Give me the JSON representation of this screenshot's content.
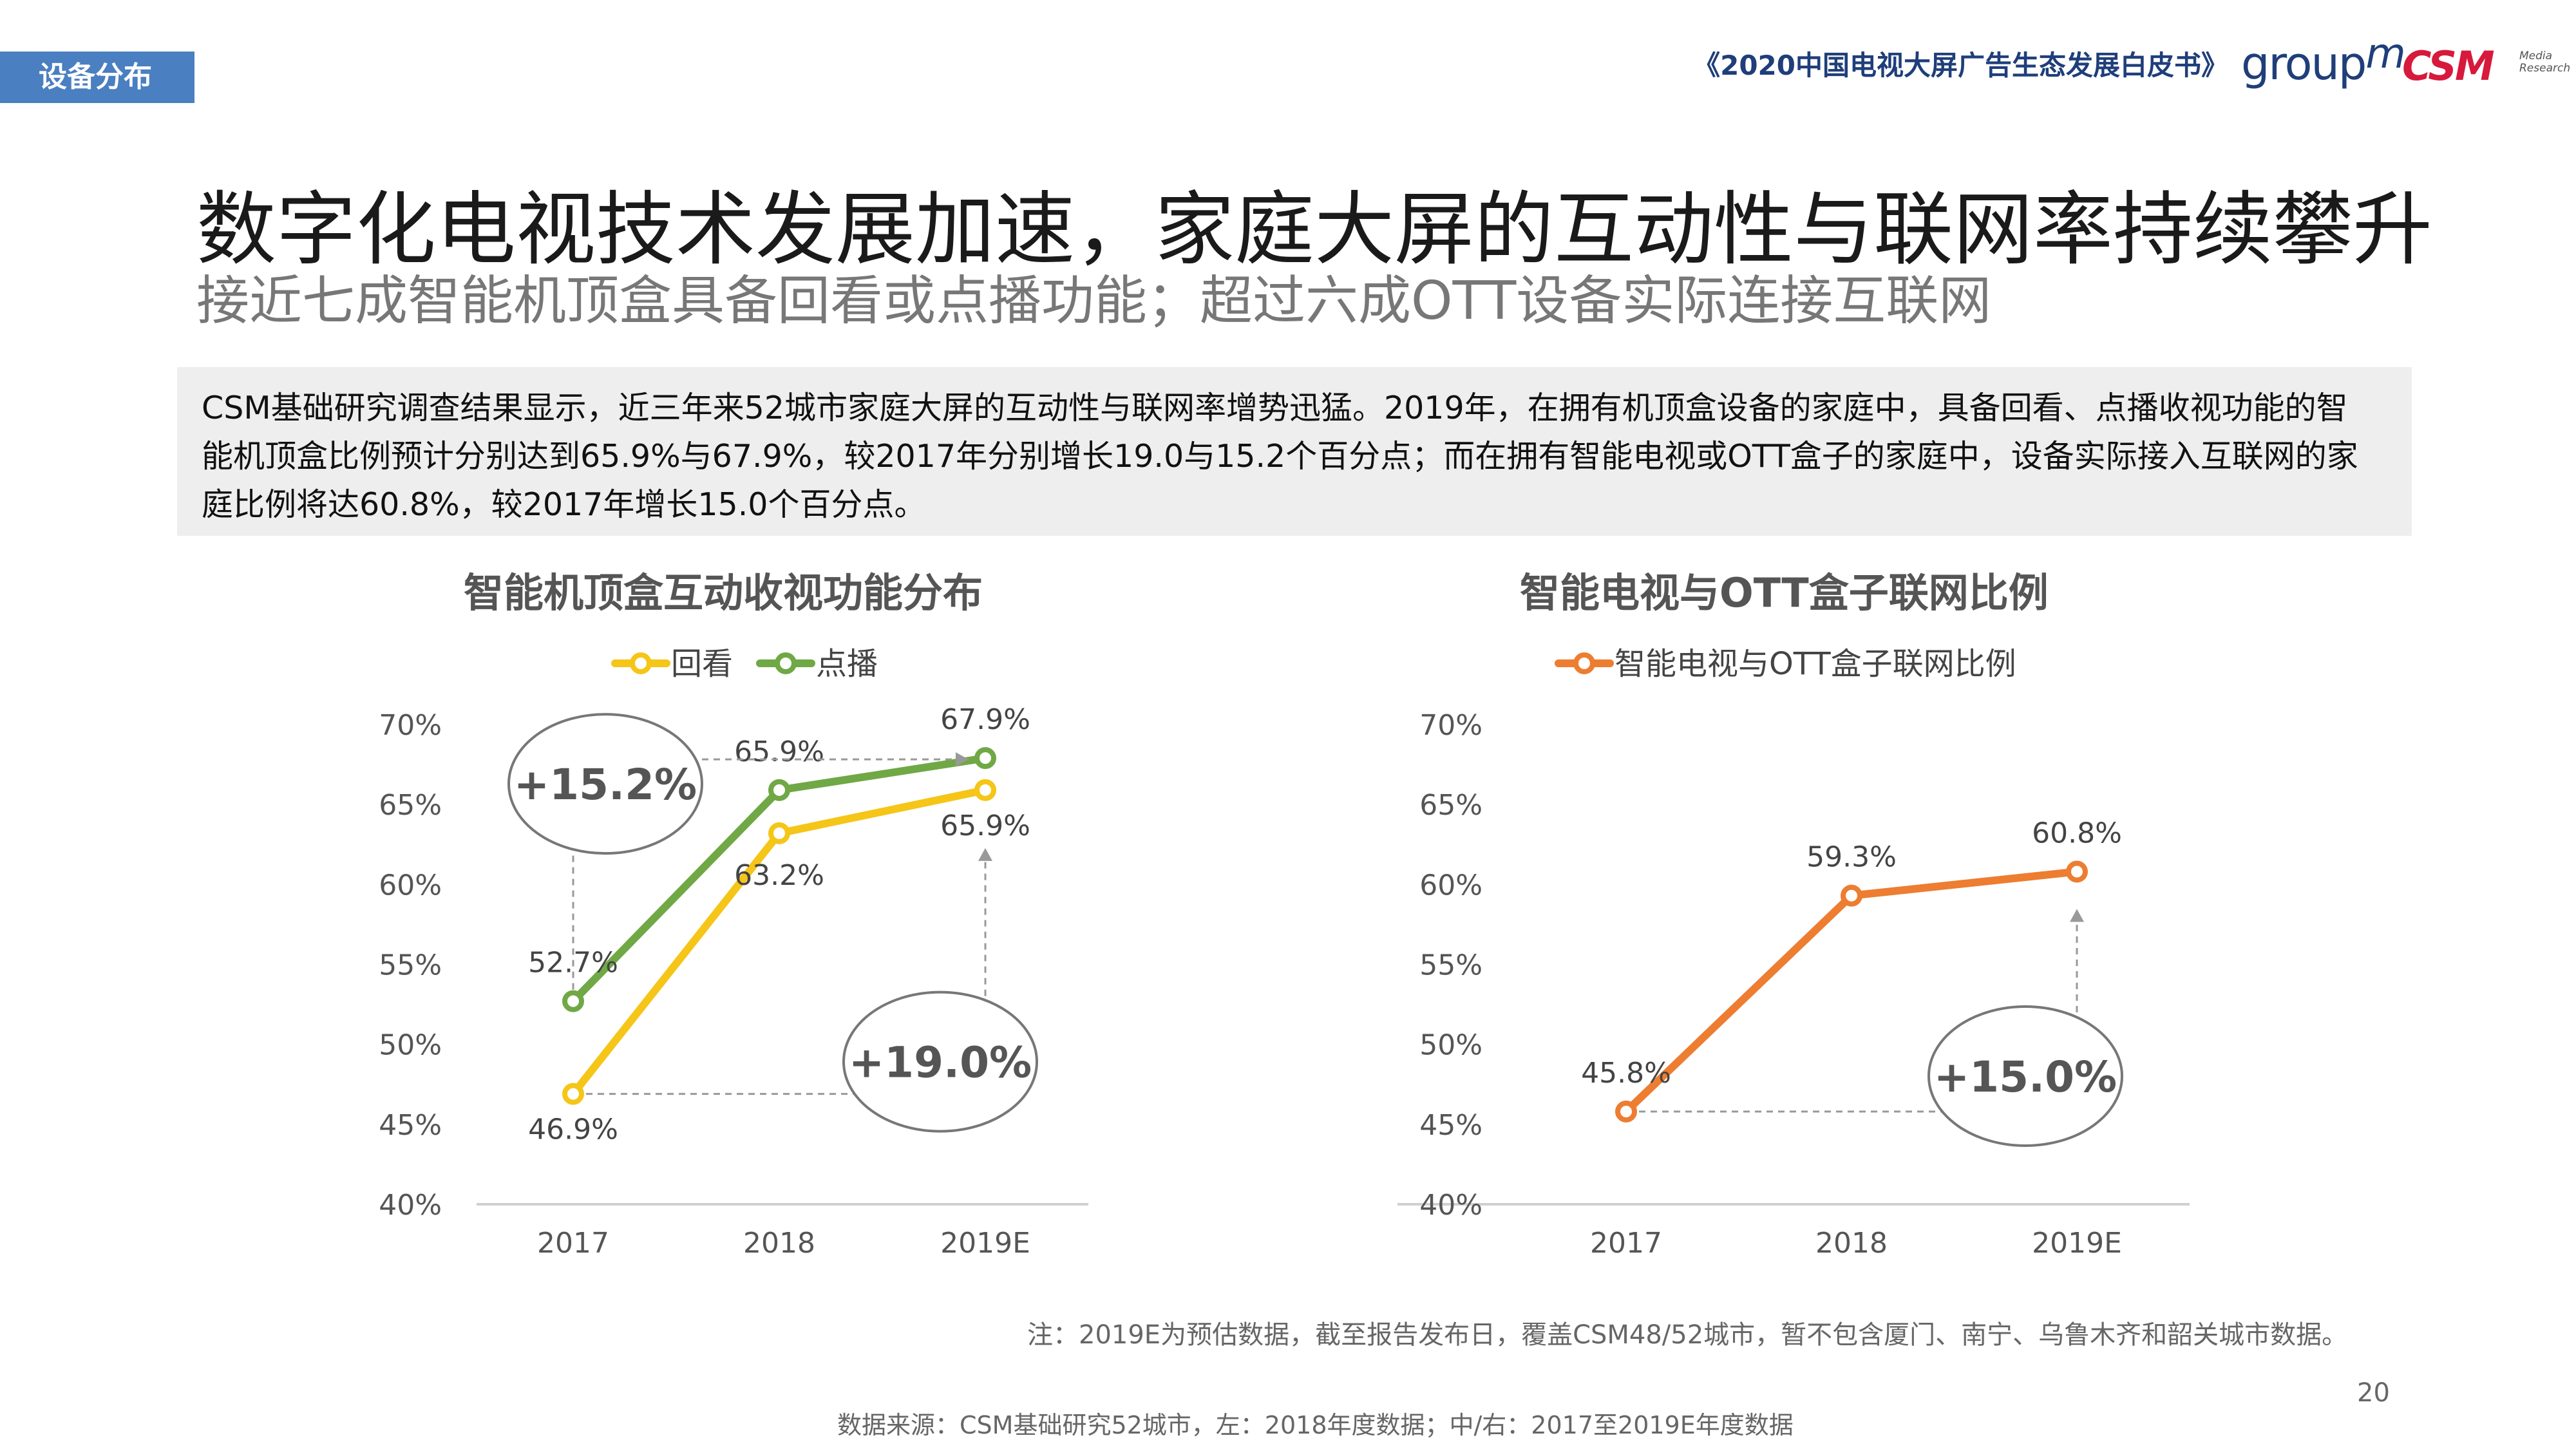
{
  "header": {
    "section_tag": "设备分布",
    "report_title": "《2020中国电视大屏广告生态发展白皮书》",
    "logo_groupm": "group",
    "logo_groupm_m": "m",
    "logo_csm": "CSM",
    "logo_csm_sub": "Media\nResearch"
  },
  "headline": "数字化电视技术发展加速，家庭大屏的互动性与联网率持续攀升",
  "subhead": "接近七成智能机顶盒具备回看或点播功能；超过六成OTT设备实际连接互联网",
  "summary": "CSM基础研究调查结果显示，近三年来52城市家庭大屏的互动性与联网率增势迅猛。2019年，在拥有机顶盒设备的家庭中，具备回看、点播收视功能的智能机顶盒比例预计分别达到65.9%与67.9%，较2017年分别增长19.0与15.2个百分点；而在拥有智能电视或OTT盒子的家庭中，设备实际接入互联网的家庭比例将达60.8%，较2017年增长15.0个百分点。",
  "colors": {
    "yellow": "#f5c518",
    "green": "#70a845",
    "orange": "#ed7d31",
    "axis": "#d0d0d0",
    "tick": "#555555",
    "label": "#444444",
    "dashed": "#999999",
    "tag_bg": "#4a7fc1"
  },
  "chart_data": [
    {
      "type": "line",
      "title": "智能机顶盒互动收视功能分布",
      "categories": [
        "2017",
        "2018",
        "2019E"
      ],
      "ylim": [
        0.4,
        0.7
      ],
      "yticks": [
        "40%",
        "45%",
        "50%",
        "55%",
        "60%",
        "65%",
        "70%"
      ],
      "legend_position": "top",
      "series": [
        {
          "name": "回看",
          "color": "#f5c518",
          "values": [
            46.9,
            63.2,
            65.9
          ],
          "labels": [
            "46.9%",
            "63.2%",
            "65.9%"
          ]
        },
        {
          "name": "点播",
          "color": "#70a845",
          "values": [
            52.7,
            65.9,
            67.9
          ],
          "labels": [
            "52.7%",
            "65.9%",
            "67.9%"
          ]
        }
      ],
      "annotations": [
        "+15.2%",
        "+19.0%"
      ]
    },
    {
      "type": "line",
      "title": "智能电视与OTT盒子联网比例",
      "categories": [
        "2017",
        "2018",
        "2019E"
      ],
      "ylim": [
        0.4,
        0.7
      ],
      "yticks": [
        "40%",
        "45%",
        "50%",
        "55%",
        "60%",
        "65%",
        "70%"
      ],
      "legend_position": "top",
      "series": [
        {
          "name": "智能电视与OTT盒子联网比例",
          "color": "#ed7d31",
          "values": [
            45.8,
            59.3,
            60.8
          ],
          "labels": [
            "45.8%",
            "59.3%",
            "60.8%"
          ]
        }
      ],
      "annotations": [
        "+15.0%"
      ]
    }
  ],
  "footnote": "注：2019E为预估数据，截至报告发布日，覆盖CSM48/52城市，暂不包含厦门、南宁、乌鲁木齐和韶关城市数据。",
  "page_number": "20",
  "source": "数据来源：CSM基础研究52城市，左：2018年度数据；中/右：2017至2019E年度数据"
}
